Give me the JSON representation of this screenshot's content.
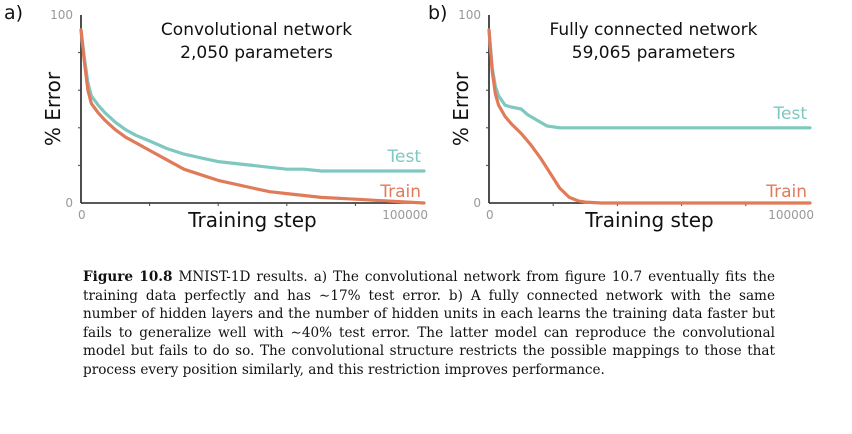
{
  "chart_data": [
    {
      "type": "line",
      "panel_label": "a)",
      "title": "Convolutional network",
      "subtitle": "2,050 parameters",
      "xlabel": "Training step",
      "ylabel": "% Error",
      "xlim": [
        0,
        100000
      ],
      "ylim": [
        0,
        100
      ],
      "x_ticks": [
        0,
        100000
      ],
      "y_ticks": [
        0,
        100
      ],
      "y_tick_labels": [
        "0",
        "100"
      ],
      "x_tick_labels": [
        "0",
        "100000"
      ],
      "grid": false,
      "series": [
        {
          "name": "Test",
          "color": "#7ec8c0",
          "x": [
            0,
            1000,
            2000,
            3000,
            5000,
            7000,
            10000,
            13000,
            16000,
            20000,
            25000,
            30000,
            35000,
            40000,
            45000,
            50000,
            55000,
            60000,
            65000,
            70000,
            80000,
            90000,
            100000
          ],
          "y": [
            92,
            77,
            64,
            57,
            52,
            48,
            43,
            39,
            36,
            33,
            29,
            26,
            24,
            22,
            21,
            20,
            19,
            18,
            18,
            17,
            17,
            17,
            17
          ]
        },
        {
          "name": "Train",
          "color": "#e07b5a",
          "x": [
            0,
            1000,
            2000,
            3000,
            5000,
            7000,
            10000,
            13000,
            16000,
            20000,
            25000,
            30000,
            35000,
            40000,
            45000,
            50000,
            55000,
            60000,
            65000,
            70000,
            80000,
            90000,
            100000
          ],
          "y": [
            92,
            75,
            60,
            53,
            48,
            44,
            39,
            35,
            32,
            28,
            23,
            18,
            15,
            12,
            10,
            8,
            6,
            5,
            4,
            3,
            2,
            1,
            0
          ]
        }
      ]
    },
    {
      "type": "line",
      "panel_label": "b)",
      "title": "Fully connected network",
      "subtitle": "59,065 parameters",
      "xlabel": "Training step",
      "ylabel": "% Error",
      "xlim": [
        0,
        100000
      ],
      "ylim": [
        0,
        100
      ],
      "x_ticks": [
        0,
        100000
      ],
      "y_ticks": [
        0,
        100
      ],
      "y_tick_labels": [
        "0",
        "100"
      ],
      "x_tick_labels": [
        "0",
        "100000"
      ],
      "grid": false,
      "series": [
        {
          "name": "Test",
          "color": "#7ec8c0",
          "x": [
            0,
            1000,
            2000,
            3000,
            5000,
            7000,
            10000,
            12000,
            15000,
            18000,
            22000,
            26000,
            30000,
            40000,
            50000,
            60000,
            70000,
            80000,
            90000,
            100000
          ],
          "y": [
            92,
            72,
            62,
            57,
            52,
            51,
            50,
            47,
            44,
            41,
            40,
            40,
            40,
            40,
            40,
            40,
            40,
            40,
            40,
            40
          ]
        },
        {
          "name": "Train",
          "color": "#e07b5a",
          "x": [
            0,
            1000,
            2000,
            3000,
            5000,
            7000,
            10000,
            13000,
            16000,
            19000,
            22000,
            25000,
            28000,
            30000,
            35000,
            40000,
            50000,
            60000,
            70000,
            80000,
            90000,
            100000
          ],
          "y": [
            92,
            70,
            58,
            52,
            46,
            42,
            37,
            31,
            24,
            16,
            8,
            3,
            1,
            0.5,
            0,
            0,
            0,
            0,
            0,
            0,
            0,
            0
          ]
        }
      ]
    }
  ],
  "caption": {
    "label": "Figure 10.8",
    "text": "MNIST-1D results. a) The convolutional network from figure 10.7 eventually fits the training data perfectly and has ∼17% test error. b) A fully connected network with the same number of hidden layers and the number of hidden units in each learns the training data faster but fails to generalize well with ∼40% test error. The latter model can reproduce the convolutional model but fails to do so. The convolutional structure restricts the possible mappings to those that process every position similarly, and this restriction improves performance."
  }
}
